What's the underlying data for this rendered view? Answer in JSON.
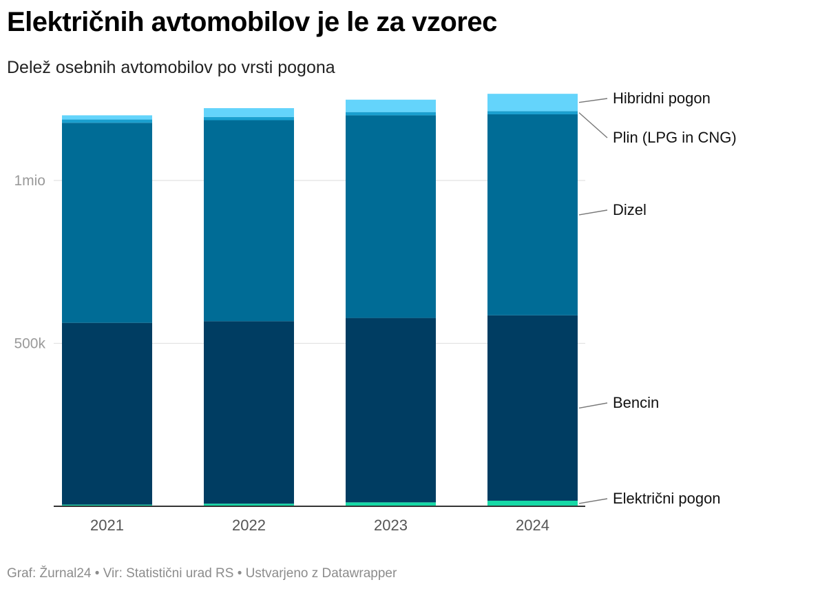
{
  "title": "Električnih avtomobilov je le za vzorec",
  "subtitle": "Delež osebnih avtomobilov po vrsti pogona",
  "footer": "Graf: Žurnal24 • Vir: Statistični urad RS • Ustvarjeno z Datawrapper",
  "chart_data": {
    "type": "bar",
    "stacked": true,
    "categories": [
      "2021",
      "2022",
      "2023",
      "2024"
    ],
    "ylim": [
      0,
      1270000
    ],
    "yticks": [
      {
        "value": 500000,
        "label": "500k"
      },
      {
        "value": 1000000,
        "label": "1mio"
      }
    ],
    "grid": true,
    "legend": "right, direct labels",
    "series": [
      {
        "name": "Električni pogon",
        "color": "#16d9a6",
        "values": [
          5000,
          8000,
          12000,
          17000
        ]
      },
      {
        "name": "Bencin",
        "color": "#003d62",
        "values": [
          558000,
          560000,
          566000,
          569000
        ]
      },
      {
        "name": "Dizel",
        "color": "#006c96",
        "values": [
          614000,
          617000,
          622000,
          617000
        ]
      },
      {
        "name": "Plin (LPG in CNG)",
        "color": "#1a9fcf",
        "values": [
          10000,
          10000,
          10000,
          10000
        ]
      },
      {
        "name": "Hibridni pogon",
        "color": "#64d4fb",
        "values": [
          13000,
          27000,
          38000,
          53000
        ]
      }
    ]
  }
}
